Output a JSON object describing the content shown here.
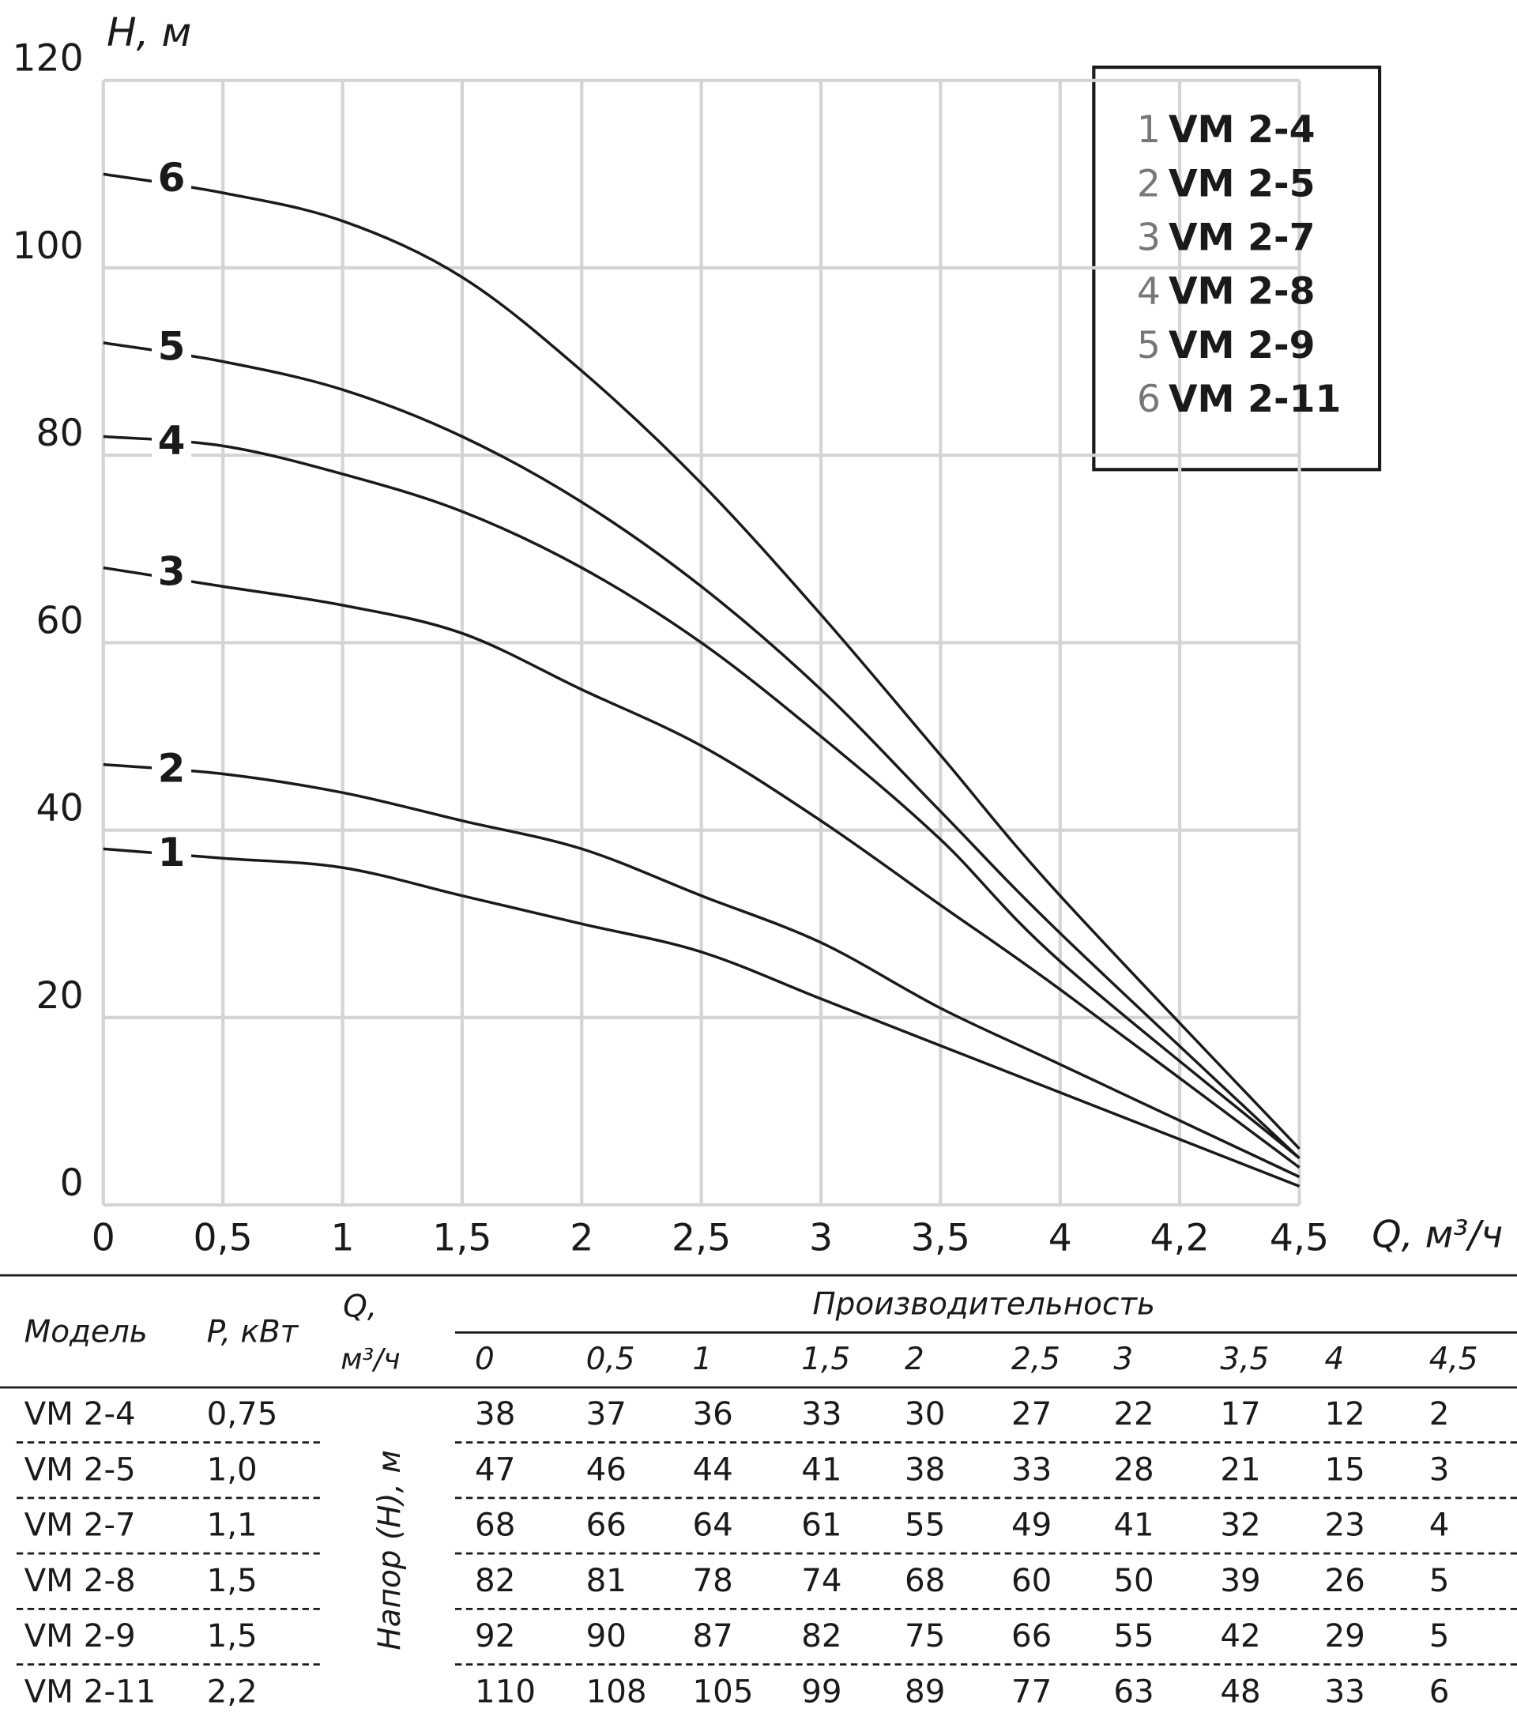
{
  "chart_data": {
    "type": "line",
    "y_label": "H, м",
    "x_label": "Q, м³/ч",
    "x": [
      0,
      0.5,
      1,
      1.5,
      2,
      2.5,
      3,
      3.5,
      4,
      4.5
    ],
    "xlim": [
      0,
      4.5
    ],
    "xticks": [
      0,
      {
        "value": 0.5,
        "label": "0,5"
      },
      1,
      {
        "value": 1.5,
        "label": "1,5"
      },
      2,
      {
        "value": 2.5,
        "label": "2,5"
      },
      3,
      {
        "value": 3.5,
        "label": "3,5"
      },
      4,
      {
        "value": 4.2,
        "label": "4,2"
      },
      {
        "value": 4.5,
        "label": "4,5"
      }
    ],
    "ylim": [
      0,
      120
    ],
    "yticks": [
      0,
      20,
      40,
      60,
      80,
      100,
      120
    ],
    "grid": true,
    "legend": "top-right",
    "series": [
      {
        "label": "1",
        "name": "VM 2-4",
        "color": "#1a1a1a",
        "values": [
          38,
          37,
          36,
          33,
          30,
          27,
          22,
          17,
          12,
          2
        ]
      },
      {
        "label": "2",
        "name": "VM 2-5",
        "color": "#1a1a1a",
        "values": [
          47,
          46,
          44,
          41,
          38,
          33,
          28,
          21,
          15,
          3
        ]
      },
      {
        "label": "3",
        "name": "VM 2-7",
        "color": "#1a1a1a",
        "values": [
          68,
          66,
          64,
          61,
          55,
          49,
          41,
          32,
          23,
          4
        ]
      },
      {
        "label": "4",
        "name": "VM 2-8",
        "color": "#1a1a1a",
        "values": [
          82,
          81,
          78,
          74,
          68,
          60,
          50,
          39,
          26,
          5
        ]
      },
      {
        "label": "5",
        "name": "VM 2-9",
        "color": "#1a1a1a",
        "values": [
          92,
          90,
          87,
          82,
          75,
          66,
          55,
          42,
          29,
          5
        ]
      },
      {
        "label": "6",
        "name": "VM 2-11",
        "color": "#1a1a1a",
        "values": [
          110,
          108,
          105,
          99,
          89,
          77,
          63,
          48,
          33,
          6
        ]
      }
    ]
  },
  "table": {
    "model_header": "Модель",
    "power_header": "P, кВт",
    "q_header": [
      "Q,",
      "м³/ч"
    ],
    "group_header": "Производительность",
    "head_label": "Напор (Н), м",
    "q_labels": [
      "0",
      "0,5",
      "1",
      "1,5",
      "2",
      "2,5",
      "3",
      "3,5",
      "4",
      "4,5"
    ],
    "power": [
      "0,75",
      "1,0",
      "1,1",
      "1,5",
      "1,5",
      "2,2"
    ]
  }
}
